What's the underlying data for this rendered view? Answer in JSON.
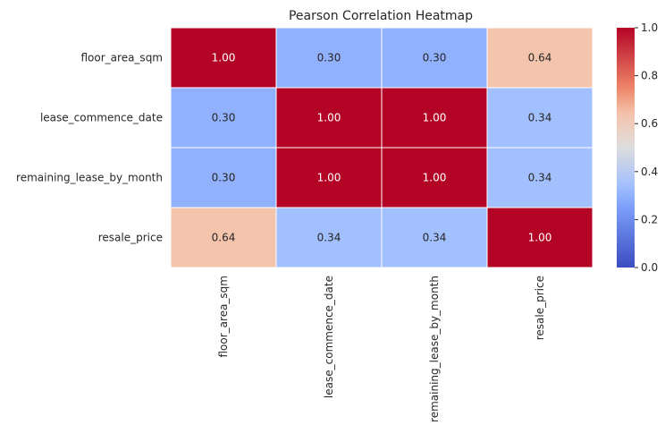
{
  "chart_data": {
    "type": "heatmap",
    "title": "Pearson Correlation Heatmap",
    "xlabel": "",
    "ylabel": "",
    "rows": [
      "floor_area_sqm",
      "lease_commence_date",
      "remaining_lease_by_month",
      "resale_price"
    ],
    "columns": [
      "floor_area_sqm",
      "lease_commence_date",
      "remaining_lease_by_month",
      "resale_price"
    ],
    "values": [
      [
        1.0,
        0.3,
        0.3,
        0.64
      ],
      [
        0.3,
        1.0,
        1.0,
        0.34
      ],
      [
        0.3,
        1.0,
        1.0,
        0.34
      ],
      [
        0.64,
        0.34,
        0.34,
        1.0
      ]
    ],
    "value_labels": [
      [
        "1.00",
        "0.30",
        "0.30",
        "0.64"
      ],
      [
        "0.30",
        "1.00",
        "1.00",
        "0.34"
      ],
      [
        "0.30",
        "1.00",
        "1.00",
        "0.34"
      ],
      [
        "0.64",
        "0.34",
        "0.34",
        "1.00"
      ]
    ],
    "colormap": "coolwarm",
    "colorbar": {
      "range": [
        0.0,
        1.0
      ],
      "ticks": [
        0.0,
        0.2,
        0.4,
        0.6,
        0.8,
        1.0
      ],
      "tick_labels": [
        "0.0",
        "0.2",
        "0.4",
        "0.6",
        "0.8",
        "1.0"
      ]
    },
    "grid_line_color": "#ffffff"
  }
}
